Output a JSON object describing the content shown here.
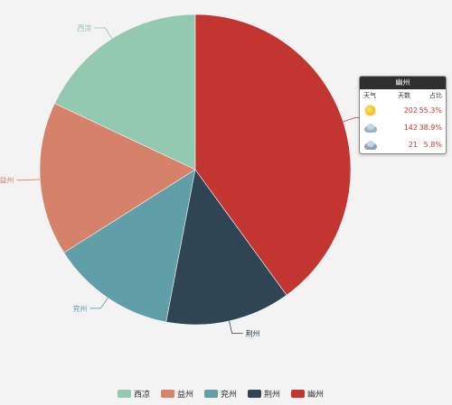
{
  "chart_data": {
    "type": "pie",
    "title": "",
    "categories": [
      "西凉",
      "益州",
      "兖州",
      "荆州",
      "幽州"
    ],
    "values": [
      18,
      16,
      13,
      13,
      40
    ],
    "colors": [
      "#93c9b0",
      "#d6826a",
      "#609ea8",
      "#2f4554",
      "#c23531"
    ],
    "legend_position": "bottom"
  },
  "tooltip": {
    "title": "幽州",
    "headers": {
      "weather": "天气",
      "days": "天数",
      "share": "占比"
    },
    "rows": [
      {
        "icon": "sun-icon",
        "days": "202",
        "share": "55.3%"
      },
      {
        "icon": "cloud-icon",
        "days": "142",
        "share": "38.9%"
      },
      {
        "icon": "rain-cloud-icon",
        "days": "21",
        "share": "5.8%"
      }
    ]
  }
}
